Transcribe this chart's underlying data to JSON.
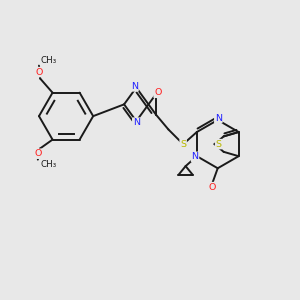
{
  "bg_color": "#e8e8e8",
  "bond_color": "#1a1a1a",
  "bond_width": 1.4,
  "atom_colors": {
    "N": "#2020ff",
    "O": "#ff2020",
    "S": "#b8b800",
    "C": "#1a1a1a"
  },
  "font_size": 6.8,
  "fig_size": [
    3.0,
    3.0
  ],
  "dpi": 100
}
